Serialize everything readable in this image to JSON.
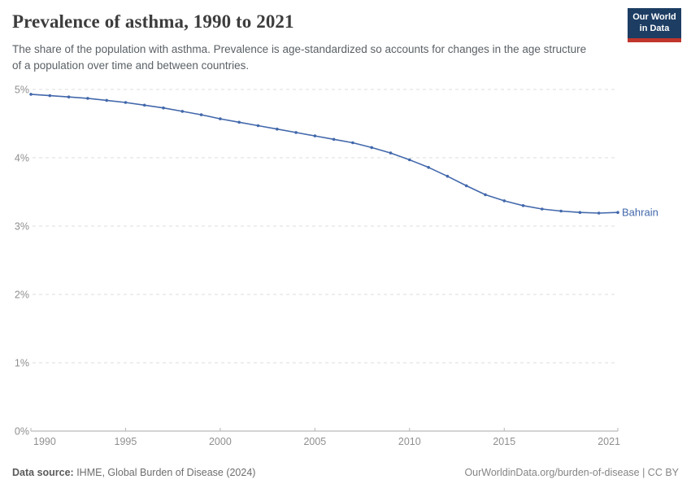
{
  "header": {
    "title": "Prevalence of asthma, 1990 to 2021",
    "subtitle": "The share of the population with asthma. Prevalence is age-standardized so accounts for changes in the age structure of a population over time and between countries.",
    "logo": {
      "line1": "Our World",
      "line2": "in Data",
      "bg_color": "#1d3d63",
      "bar_color": "#c0362c"
    }
  },
  "chart_data": {
    "type": "line",
    "title": "Prevalence of asthma, 1990 to 2021",
    "xlabel": "",
    "ylabel": "",
    "xlim": [
      1990,
      2021
    ],
    "ylim": [
      0,
      5
    ],
    "grid": "horizontal-dashed",
    "legend_position": "end-of-line-label",
    "x_tick_labels": [
      1990,
      1995,
      2000,
      2005,
      2010,
      2015,
      2021
    ],
    "y_tick_labels": [
      "0%",
      "1%",
      "2%",
      "3%",
      "4%",
      "5%"
    ],
    "x": [
      1990,
      1991,
      1992,
      1993,
      1994,
      1995,
      1996,
      1997,
      1998,
      1999,
      2000,
      2001,
      2002,
      2003,
      2004,
      2005,
      2006,
      2007,
      2008,
      2009,
      2010,
      2011,
      2012,
      2013,
      2014,
      2015,
      2016,
      2017,
      2018,
      2019,
      2020,
      2021
    ],
    "series": [
      {
        "name": "Bahrain",
        "color": "#4268ab",
        "values": [
          4.93,
          4.91,
          4.89,
          4.87,
          4.84,
          4.81,
          4.77,
          4.73,
          4.68,
          4.63,
          4.57,
          4.52,
          4.47,
          4.42,
          4.37,
          4.32,
          4.27,
          4.22,
          4.15,
          4.07,
          3.97,
          3.86,
          3.73,
          3.59,
          3.46,
          3.37,
          3.3,
          3.25,
          3.22,
          3.2,
          3.19,
          3.2
        ]
      }
    ],
    "style": {
      "gridline_color": "#dcdcdc",
      "axis_color": "#a8a8a8",
      "tick_color": "#b5b5b5",
      "tick_label_color": "#8f8f8f"
    }
  },
  "footer": {
    "source_bold": "Data source:",
    "source_text": " IHME, Global Burden of Disease (2024)",
    "credit": "OurWorldinData.org/burden-of-disease | CC BY"
  }
}
